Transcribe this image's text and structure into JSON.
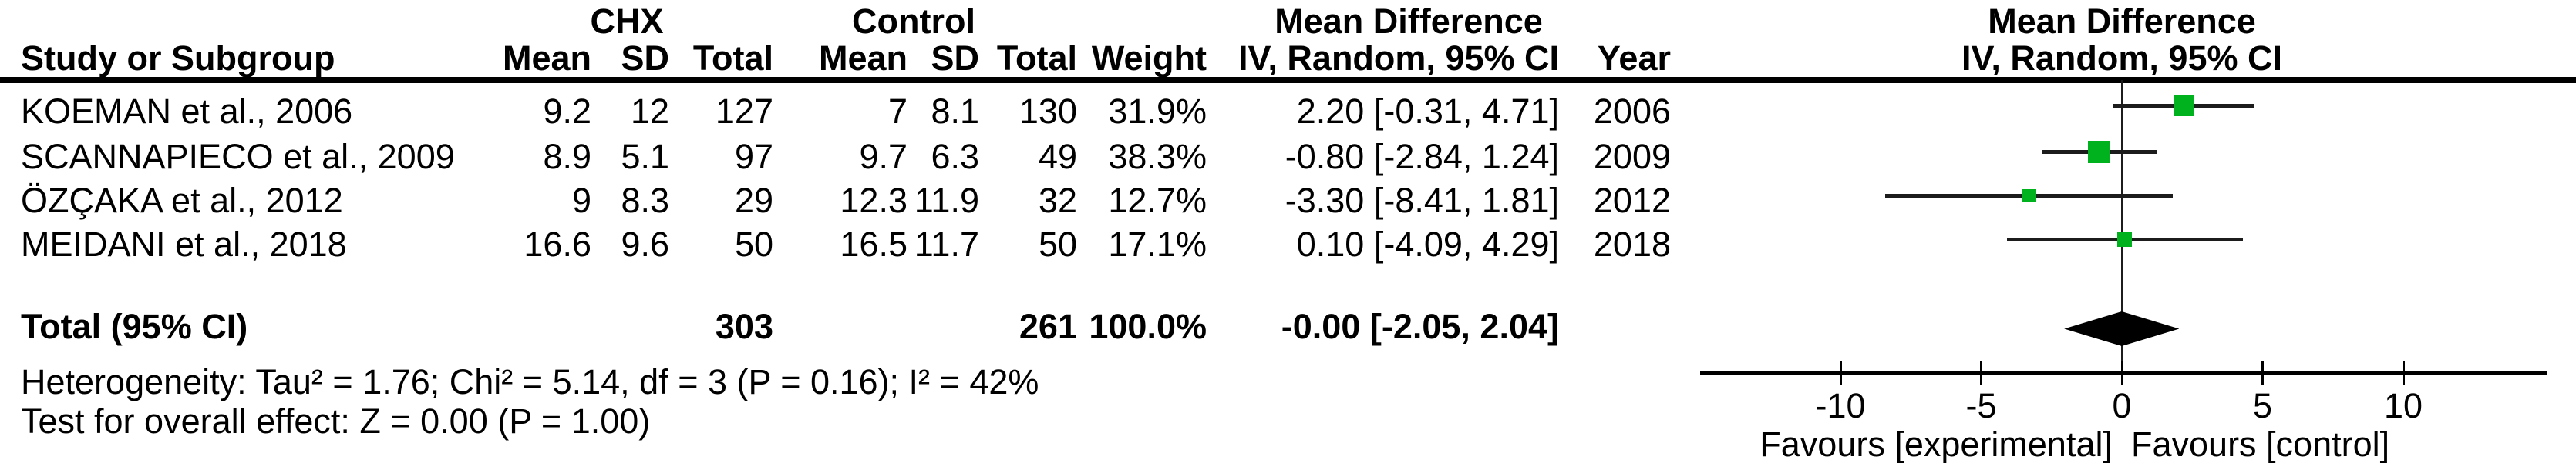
{
  "table": {
    "group_headers": {
      "chx": "CHX",
      "control": "Control",
      "md": "Mean Difference",
      "plot_md": "Mean Difference"
    },
    "col_headers": {
      "study": "Study or Subgroup",
      "chx_mean": "Mean",
      "chx_sd": "SD",
      "chx_total": "Total",
      "ctl_mean": "Mean",
      "ctl_sd": "SD",
      "ctl_total": "Total",
      "weight": "Weight",
      "md_ci": "IV, Random, 95% CI",
      "year": "Year",
      "plot_md_ci": "IV, Random, 95% CI"
    },
    "rows": [
      {
        "study": "KOEMAN et al., 2006",
        "chx_mean": "9.2",
        "chx_sd": "12",
        "chx_total": "127",
        "ctl_mean": "7",
        "ctl_sd": "8.1",
        "ctl_total": "130",
        "weight": "31.9%",
        "md_ci": "2.20 [-0.31, 4.71]",
        "year": "2006"
      },
      {
        "study": "SCANNAPIECO et al., 2009",
        "chx_mean": "8.9",
        "chx_sd": "5.1",
        "chx_total": "97",
        "ctl_mean": "9.7",
        "ctl_sd": "6.3",
        "ctl_total": "49",
        "weight": "38.3%",
        "md_ci": "-0.80 [-2.84, 1.24]",
        "year": "2009"
      },
      {
        "study": "ÖZÇAKA et al., 2012",
        "chx_mean": "9",
        "chx_sd": "8.3",
        "chx_total": "29",
        "ctl_mean": "12.3",
        "ctl_sd": "11.9",
        "ctl_total": "32",
        "weight": "12.7%",
        "md_ci": "-3.30 [-8.41, 1.81]",
        "year": "2012"
      },
      {
        "study": "MEIDANI et al., 2018",
        "chx_mean": "16.6",
        "chx_sd": "9.6",
        "chx_total": "50",
        "ctl_mean": "16.5",
        "ctl_sd": "11.7",
        "ctl_total": "50",
        "weight": "17.1%",
        "md_ci": "0.10 [-4.09, 4.29]",
        "year": "2018"
      }
    ],
    "total_row": {
      "label": "Total (95% CI)",
      "chx_total": "303",
      "ctl_total": "261",
      "weight": "100.0%",
      "md_ci": "-0.00 [-2.05, 2.04]"
    },
    "footer": {
      "heterogeneity": "Heterogeneity: Tau² = 1.76; Chi² = 5.14, df = 3 (P = 0.16); I² = 42%",
      "overall_effect": "Test for overall effect: Z = 0.00 (P = 1.00)"
    }
  },
  "chart_data": {
    "type": "forest",
    "effect_measure": "Mean Difference",
    "model": "IV, Random, 95% CI",
    "x_axis": {
      "ticks": [
        -10,
        -5,
        0,
        5,
        10
      ],
      "range": [
        -15,
        15.1
      ],
      "label_left": "Favours [experimental]",
      "label_right": "Favours [control]"
    },
    "studies": [
      {
        "name": "KOEMAN et al., 2006",
        "md": 2.2,
        "ci_low": -0.31,
        "ci_high": 4.71,
        "weight": 31.9,
        "year": 2006
      },
      {
        "name": "SCANNAPIECO et al., 2009",
        "md": -0.8,
        "ci_low": -2.84,
        "ci_high": 1.24,
        "weight": 38.3,
        "year": 2009
      },
      {
        "name": "ÖZÇAKA et al., 2012",
        "md": -3.3,
        "ci_low": -8.41,
        "ci_high": 1.81,
        "weight": 12.7,
        "year": 2012
      },
      {
        "name": "MEIDANI et al., 2018",
        "md": 0.1,
        "ci_low": -4.09,
        "ci_high": 4.29,
        "weight": 17.1,
        "year": 2018
      }
    ],
    "total": {
      "label": "Total (95% CI)",
      "md": -0.0,
      "ci_low": -2.05,
      "ci_high": 2.04,
      "weight": 100.0
    },
    "marker_color": "#00b31e",
    "line_color": "#1c1c1c",
    "summary_color": "#000000"
  }
}
